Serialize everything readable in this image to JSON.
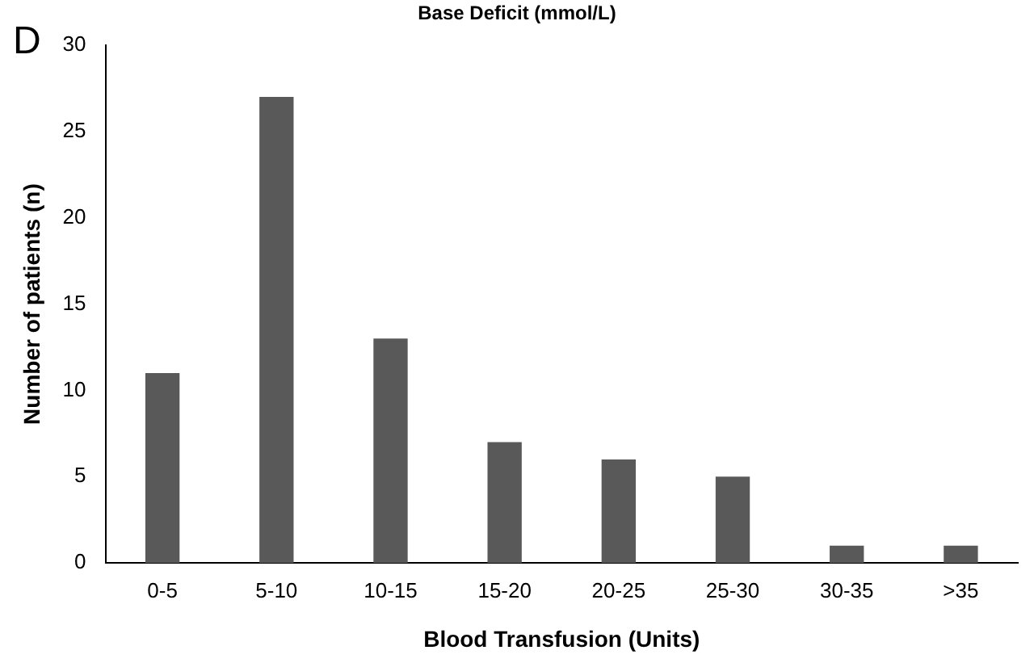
{
  "chart_data": {
    "type": "bar",
    "xlabel": "Blood Transfusion (Units)",
    "ylabel": "Number of patients (n)",
    "annotations": [
      "Base Deficit (mmol/L)",
      "D"
    ],
    "categories": [
      "0-5",
      "5-10",
      "10-15",
      "15-20",
      "20-25",
      "25-30",
      "30-35",
      ">35"
    ],
    "values": [
      11,
      27,
      13,
      7,
      6,
      5,
      1,
      1
    ],
    "color": "#595959",
    "ylim": [
      0,
      30
    ],
    "yticks": [
      0,
      5,
      10,
      15,
      20,
      25,
      30
    ],
    "grid": false,
    "legend": false
  }
}
